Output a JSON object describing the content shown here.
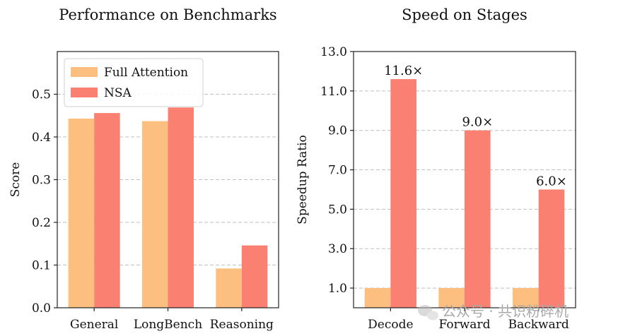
{
  "chart_data": [
    {
      "type": "bar",
      "title": "Performance on Benchmarks",
      "xlabel": "",
      "ylabel": "Score",
      "ylim": [
        0,
        0.6
      ],
      "yticks": [
        "0.0",
        "0.1",
        "0.2",
        "0.3",
        "0.4",
        "0.5"
      ],
      "categories": [
        "General",
        "LongBench",
        "Reasoning"
      ],
      "series": [
        {
          "name": "Full Attention",
          "color": "#fdbf80",
          "values": [
            0.443,
            0.437,
            0.092
          ]
        },
        {
          "name": "NSA",
          "color": "#fa8072",
          "values": [
            0.456,
            0.469,
            0.146
          ]
        }
      ],
      "legend": "top-left",
      "grid": "y-dashed"
    },
    {
      "type": "bar",
      "title": "Speed on Stages",
      "xlabel": "",
      "ylabel": "Speedup Ratio",
      "ylim": [
        0,
        13
      ],
      "yticks": [
        "1.0",
        "3.0",
        "5.0",
        "7.0",
        "9.0",
        "11.0",
        "13.0"
      ],
      "categories": [
        "Decode",
        "Forward",
        "Backward"
      ],
      "series": [
        {
          "color": "#fdbf80",
          "values": [
            1.0,
            1.0,
            1.0
          ]
        },
        {
          "color": "#fa8072",
          "values": [
            11.6,
            9.0,
            6.0
          ],
          "labels": [
            "11.6×",
            "9.0×",
            "6.0×"
          ]
        }
      ],
      "grid": "y-dashed"
    }
  ],
  "watermark": {
    "text": "公众号 · 共识粉碎机",
    "icon": "wechat-icon"
  }
}
